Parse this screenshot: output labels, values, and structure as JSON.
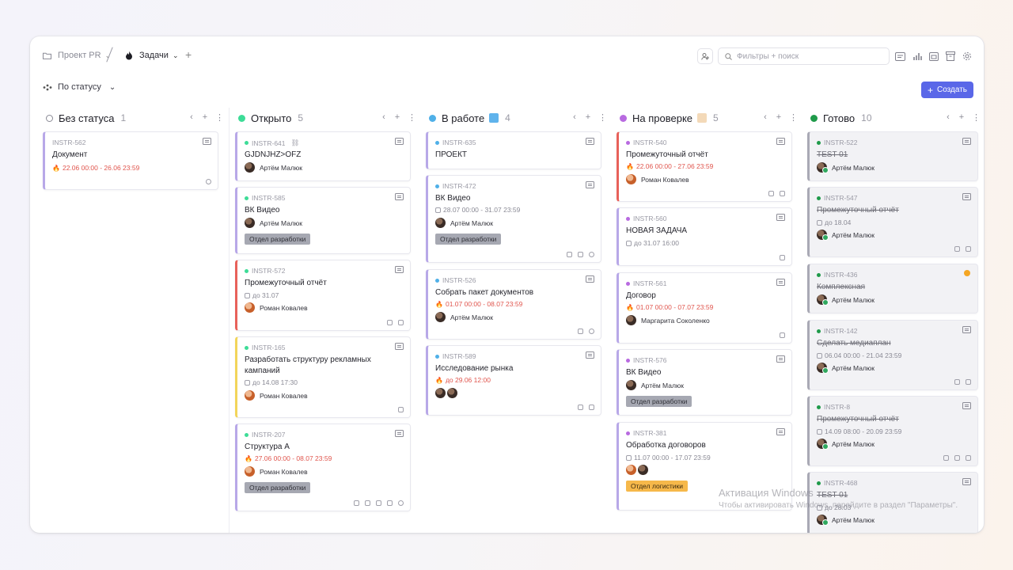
{
  "breadcrumbs": {
    "project": "Проект PR",
    "tasks": "Задачи"
  },
  "search": {
    "placeholder": "Фильтры + поиск"
  },
  "toolbar": {
    "group_by": "По статусу",
    "create": "Создать"
  },
  "colors": {
    "accent": "#5a67e8",
    "open": "#3ddc97",
    "in_progress": "#4fb0e8",
    "review": "#b86ae0",
    "done": "#1f9a4a",
    "overdue": "#e0554d"
  },
  "columns": [
    {
      "title": "Без статуса",
      "count": "1",
      "cards": [
        {
          "id": "INSTR-562",
          "title": "Документ",
          "date": "22.06 00:00 - 26.06 23:59"
        }
      ]
    },
    {
      "title": "Открыто",
      "count": "5",
      "cards": [
        {
          "id": "INSTR-641",
          "title": "GJDNJHZ>OFZ",
          "user": "Артём Малюк"
        },
        {
          "id": "INSTR-585",
          "title": "ВК Видео",
          "user": "Артём Малюк",
          "tag": "Отдел разработки"
        },
        {
          "id": "INSTR-572",
          "title": "Промежуточный отчёт",
          "date": "до 31.07",
          "user": "Роман Ковалев"
        },
        {
          "id": "INSTR-165",
          "title": "Разработать структуру рекламных кампаний",
          "date": "до 14.08 17:30",
          "user": "Роман Ковалев"
        },
        {
          "id": "INSTR-207",
          "title": "Структура А",
          "date": "27.06 00:00 - 08.07 23:59",
          "user": "Роман Ковалев",
          "tag": "Отдел разработки"
        }
      ]
    },
    {
      "title": "В работе",
      "count": "4",
      "cards": [
        {
          "id": "INSTR-635",
          "title": "ПРОЕКТ"
        },
        {
          "id": "INSTR-472",
          "title": "ВК Видео",
          "date": "28.07 00:00 - 31.07 23:59",
          "user": "Артём Малюк",
          "tag": "Отдел разработки"
        },
        {
          "id": "INSTR-526",
          "title": "Собрать пакет документов",
          "date": "01.07 00:00 - 08.07 23:59",
          "user": "Артём Малюк"
        },
        {
          "id": "INSTR-589",
          "title": "Исследование рынка",
          "date": "до 29.06 12:00"
        }
      ]
    },
    {
      "title": "На проверке",
      "count": "5",
      "cards": [
        {
          "id": "INSTR-540",
          "title": "Промежуточный отчёт",
          "date": "22.06 00:00 - 27.06 23:59",
          "user": "Роман Ковалев"
        },
        {
          "id": "INSTR-560",
          "title": "НОВАЯ ЗАДАЧА",
          "date": "до 31.07 16:00"
        },
        {
          "id": "INSTR-561",
          "title": "Договор",
          "date": "01.07 00:00 - 07.07 23:59",
          "user": "Маргарита Соколенко"
        },
        {
          "id": "INSTR-576",
          "title": "ВК Видео",
          "user": "Артём Малюк",
          "tag": "Отдел разработки"
        },
        {
          "id": "INSTR-381",
          "title": "Обработка договоров",
          "date": "11.07 00:00 - 17.07 23:59",
          "tag": "Отдел логистики"
        }
      ]
    },
    {
      "title": "Готово",
      "count": "10",
      "cards": [
        {
          "id": "INSTR-522",
          "title": "TEST 01",
          "user": "Артём Малюк"
        },
        {
          "id": "INSTR-547",
          "title": "Промежуточный отчёт",
          "date": "до 18.04",
          "user": "Артём Малюк"
        },
        {
          "id": "INSTR-436",
          "title": "Комплексная",
          "user": "Артём Малюк"
        },
        {
          "id": "INSTR-142",
          "title": "Сделать медиаплан",
          "date": "06.04 00:00 - 21.04 23:59",
          "user": "Артём Малюк"
        },
        {
          "id": "INSTR-8",
          "title": "Промежуточный отчёт",
          "date": "14.09 08:00 - 20.09 23:59",
          "user": "Артём Малюк"
        },
        {
          "id": "INSTR-468",
          "title": "TEST 01",
          "date": "до 28.03",
          "user": "Артём Малюк"
        }
      ]
    }
  ],
  "watermark": {
    "line1": "Активация Windows",
    "line2": "Чтобы активировать Windows, перейдите в раздел \"Параметры\"."
  }
}
